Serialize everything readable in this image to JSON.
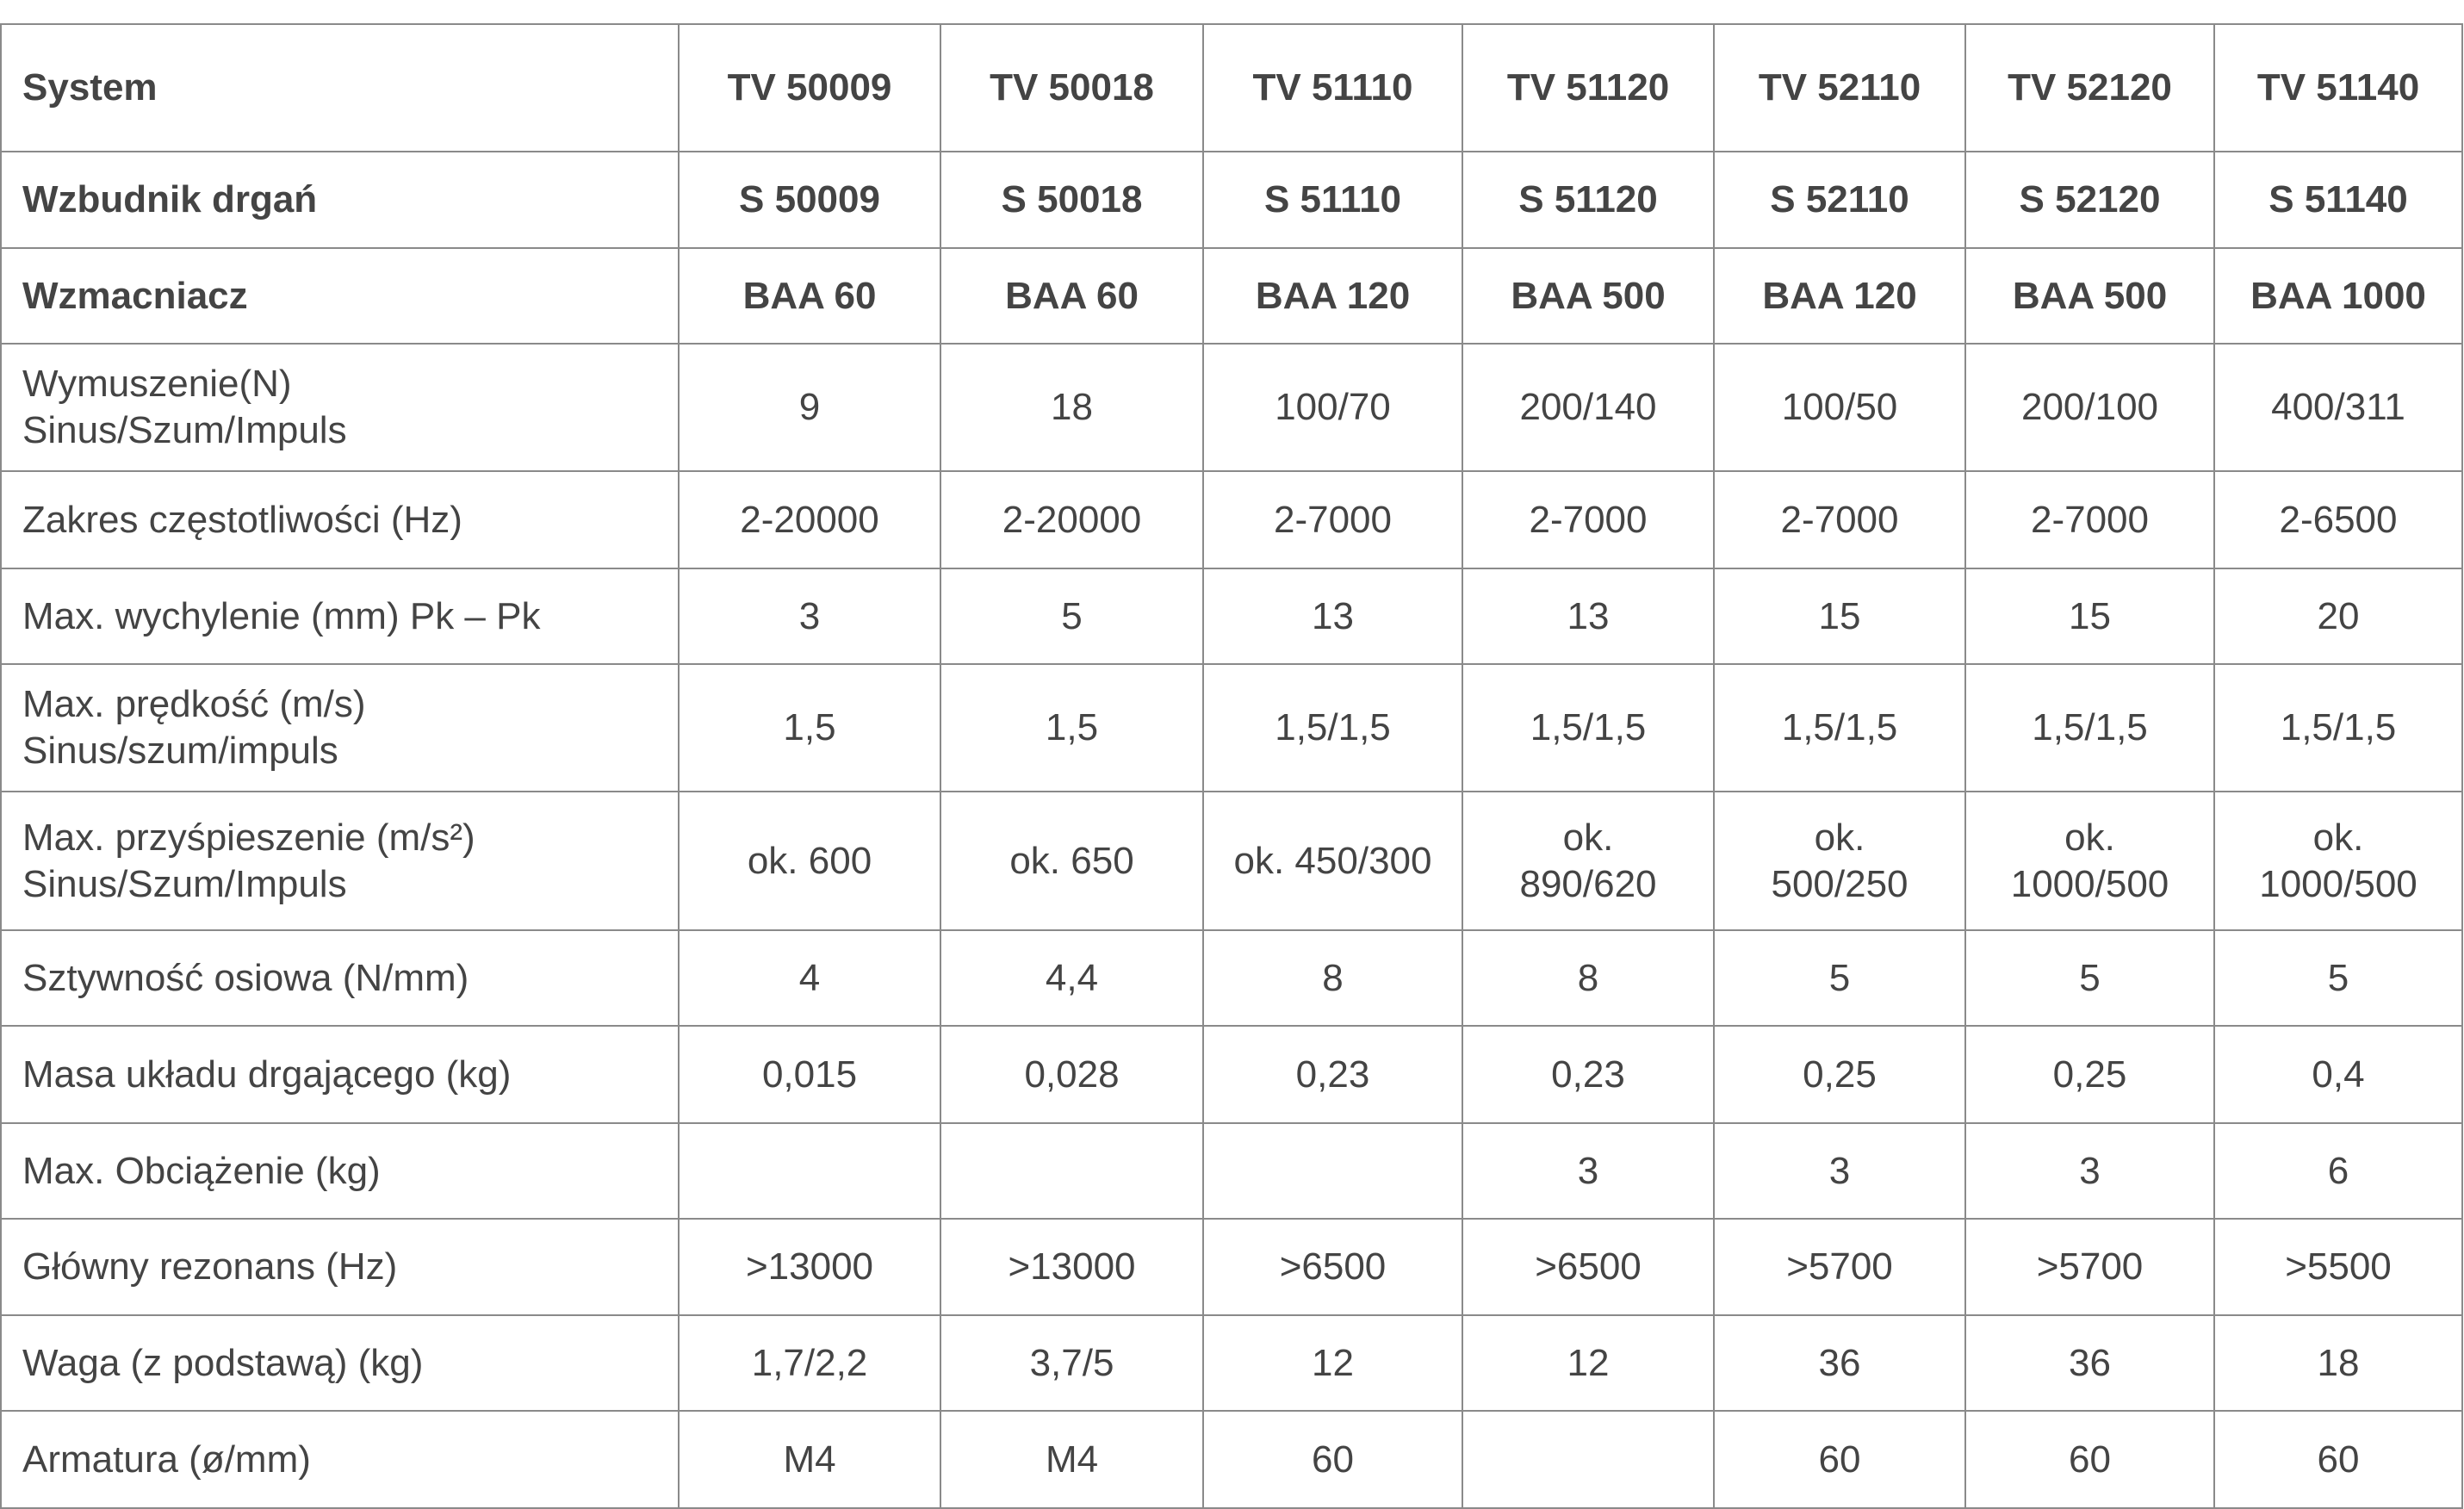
{
  "table": {
    "header": [
      "System",
      "TV 50009",
      "TV 50018",
      "TV 51110",
      "TV 51120",
      "TV 52110",
      "TV 52120",
      "TV 51140"
    ],
    "rows": [
      [
        "Wzbudnik drgań",
        "S 50009",
        "S 50018",
        "S 51110",
        "S 51120",
        "S 52110",
        "S 52120",
        "S 51140"
      ],
      [
        "Wzmacniacz",
        "BAA 60",
        "BAA 60",
        "BAA 120",
        "BAA 500",
        "BAA 120",
        "BAA 500",
        "BAA 1000"
      ],
      [
        "Wymuszenie(N)\nSinus/Szum/Impuls",
        "9",
        "18",
        "100/70",
        "200/140",
        "100/50",
        "200/100",
        "400/311"
      ],
      [
        "Zakres częstotliwości (Hz)",
        "2-20000",
        "2-20000",
        "2-7000",
        "2-7000",
        "2-7000",
        "2-7000",
        "2-6500"
      ],
      [
        "Max. wychylenie (mm) Pk – Pk",
        "3",
        "5",
        "13",
        "13",
        "15",
        "15",
        "20"
      ],
      [
        "Max. prędkość (m/s)\nSinus/szum/impuls",
        "1,5",
        "1,5",
        "1,5/1,5",
        "1,5/1,5",
        "1,5/1,5",
        "1,5/1,5",
        "1,5/1,5"
      ],
      [
        "Max. przyśpieszenie (m/s²)\nSinus/Szum/Impuls",
        "ok. 600",
        "ok. 650",
        "ok. 450/300",
        "ok.\n890/620",
        "ok.\n500/250",
        "ok.\n1000/500",
        "ok.\n1000/500"
      ],
      [
        "Sztywność osiowa (N/mm)",
        "4",
        "4,4",
        "8",
        "8",
        "5",
        "5",
        "5"
      ],
      [
        "Masa układu drgającego (kg)",
        "0,015",
        "0,028",
        "0,23",
        "0,23",
        "0,25",
        "0,25",
        "0,4"
      ],
      [
        "Max. Obciążenie (kg)",
        null,
        null,
        null,
        "3",
        "3",
        "3",
        "6"
      ],
      [
        "Główny rezonans (Hz)",
        ">13000",
        ">13000",
        ">6500",
        ">6500",
        ">5700",
        ">5700",
        ">5500"
      ],
      [
        "Waga (z podstawą) (kg)",
        "1,7/2,2",
        "3,7/5",
        "12",
        "12",
        "36",
        "36",
        "18"
      ],
      [
        "Armatura (ø/mm)",
        "M4",
        "M4",
        "60",
        null,
        "60",
        "60",
        "60"
      ]
    ]
  }
}
